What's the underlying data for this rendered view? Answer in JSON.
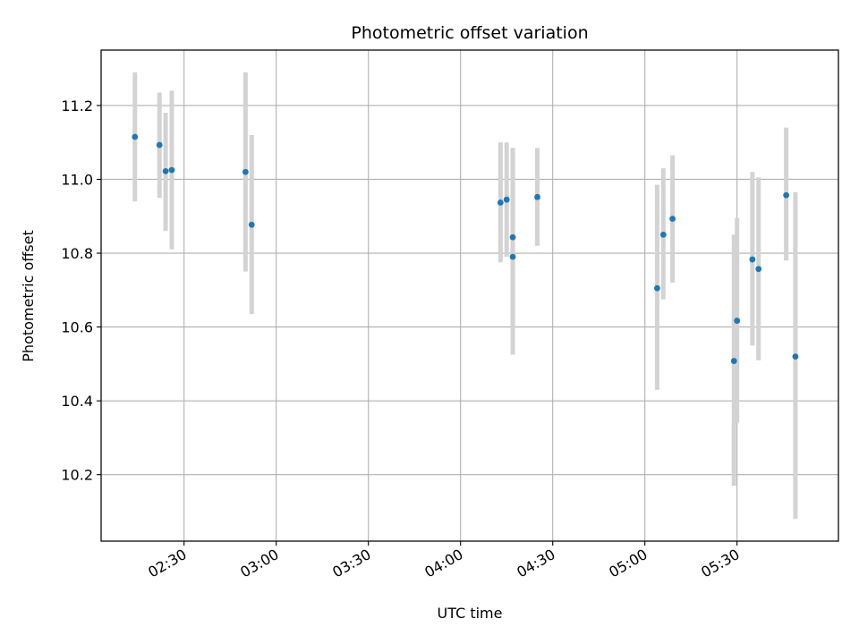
{
  "chart_data": {
    "type": "scatter",
    "title": "Photometric offset variation",
    "xlabel": "UTC time",
    "ylabel": "Photometric offset",
    "x_ticks": [
      "02:30",
      "03:00",
      "03:30",
      "04:00",
      "04:30",
      "05:00",
      "05:30"
    ],
    "y_ticks": [
      "10.2",
      "10.4",
      "10.6",
      "10.8",
      "11.0",
      "11.2"
    ],
    "xlim": [
      "02:03",
      "06:03"
    ],
    "ylim": [
      10.02,
      11.35
    ],
    "grid": true,
    "marker_color": "#1f77b4",
    "errorbar_color": "#d3d3d3",
    "series": [
      {
        "points": [
          {
            "x": "02:14",
            "y": 11.115,
            "err_low": 10.94,
            "err_high": 11.29
          },
          {
            "x": "02:22",
            "y": 11.093,
            "err_low": 10.95,
            "err_high": 11.235
          },
          {
            "x": "02:24",
            "y": 11.022,
            "err_low": 10.86,
            "err_high": 11.18
          },
          {
            "x": "02:26",
            "y": 11.025,
            "err_low": 10.81,
            "err_high": 11.24
          },
          {
            "x": "02:50",
            "y": 11.02,
            "err_low": 10.75,
            "err_high": 11.29
          },
          {
            "x": "02:52",
            "y": 10.877,
            "err_low": 10.635,
            "err_high": 11.12
          },
          {
            "x": "04:13",
            "y": 10.937,
            "err_low": 10.775,
            "err_high": 11.1
          },
          {
            "x": "04:15",
            "y": 10.945,
            "err_low": 10.79,
            "err_high": 11.1
          },
          {
            "x": "04:17",
            "y": 10.843,
            "err_low": 10.6,
            "err_high": 11.085
          },
          {
            "x": "04:17",
            "y": 10.79,
            "err_low": 10.525,
            "err_high": 11.085
          },
          {
            "x": "04:25",
            "y": 10.952,
            "err_low": 10.82,
            "err_high": 11.085
          },
          {
            "x": "05:04",
            "y": 10.705,
            "err_low": 10.43,
            "err_high": 10.985
          },
          {
            "x": "05:06",
            "y": 10.85,
            "err_low": 10.675,
            "err_high": 11.03
          },
          {
            "x": "05:09",
            "y": 10.893,
            "err_low": 10.72,
            "err_high": 11.065
          },
          {
            "x": "05:29",
            "y": 10.508,
            "err_low": 10.17,
            "err_high": 10.85
          },
          {
            "x": "05:30",
            "y": 10.617,
            "err_low": 10.34,
            "err_high": 10.895
          },
          {
            "x": "05:35",
            "y": 10.783,
            "err_low": 10.55,
            "err_high": 11.02
          },
          {
            "x": "05:37",
            "y": 10.757,
            "err_low": 10.51,
            "err_high": 11.005
          },
          {
            "x": "05:46",
            "y": 10.957,
            "err_low": 10.78,
            "err_high": 11.14
          },
          {
            "x": "05:49",
            "y": 10.52,
            "err_low": 10.08,
            "err_high": 10.965
          }
        ]
      }
    ]
  }
}
